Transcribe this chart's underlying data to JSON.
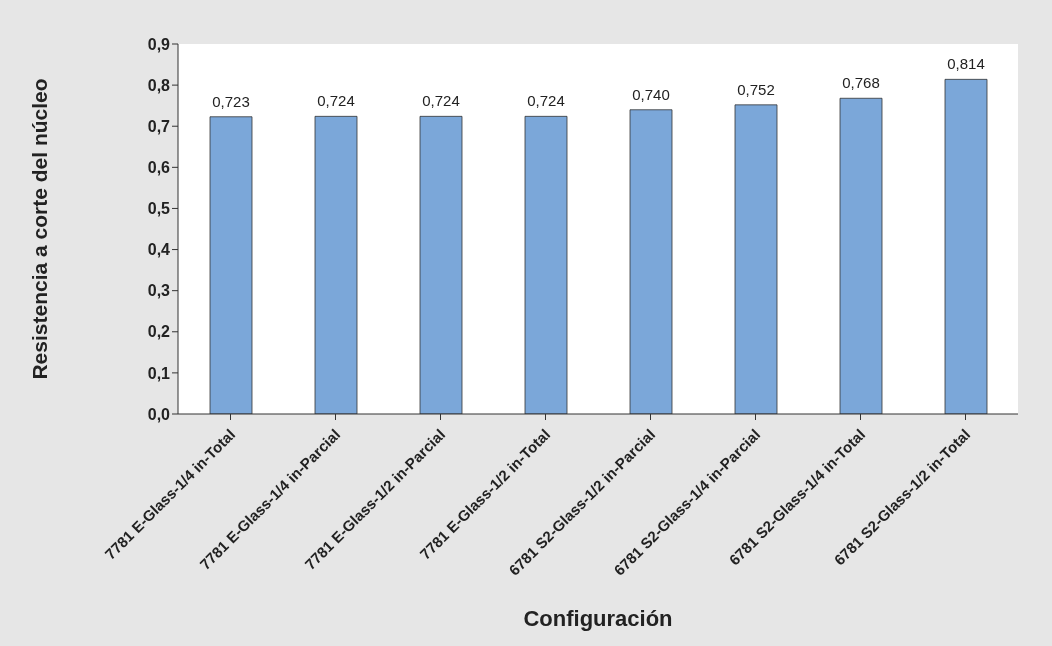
{
  "chart_data": {
    "type": "bar",
    "xlabel": "Configuración",
    "ylabel": "Resistencia a corte del núcleo",
    "categories": [
      "7781 E-Glass-1/4 in-Total",
      "7781 E-Glass-1/4 in-Parcial",
      "7781 E-Glass-1/2 in-Parcial",
      "7781 E-Glass-1/2 in-Total",
      "6781 S2-Glass-1/2 in-Parcial",
      "6781 S2-Glass-1/4 in-Parcial",
      "6781 S2-Glass-1/4 in-Total",
      "6781 S2-Glass-1/2 in-Total"
    ],
    "values": [
      0.723,
      0.724,
      0.724,
      0.724,
      0.74,
      0.752,
      0.768,
      0.814
    ],
    "value_labels": [
      "0,723",
      "0,724",
      "0,724",
      "0,724",
      "0,740",
      "0,752",
      "0,768",
      "0,814"
    ],
    "color": "#7ba7d9",
    "ylim": [
      0,
      0.9
    ],
    "yticks": [
      {
        "value": 0,
        "label": "0,0"
      },
      {
        "value": 0.1,
        "label": "0,1"
      },
      {
        "value": 0.2,
        "label": "0,2"
      },
      {
        "value": 0.3,
        "label": "0,3"
      },
      {
        "value": 0.4,
        "label": "0,4"
      },
      {
        "value": 0.5,
        "label": "0,5"
      },
      {
        "value": 0.6,
        "label": "0,6"
      },
      {
        "value": 0.7,
        "label": "0,7"
      },
      {
        "value": 0.8,
        "label": "0,8"
      },
      {
        "value": 0.9,
        "label": "0,9"
      }
    ]
  }
}
